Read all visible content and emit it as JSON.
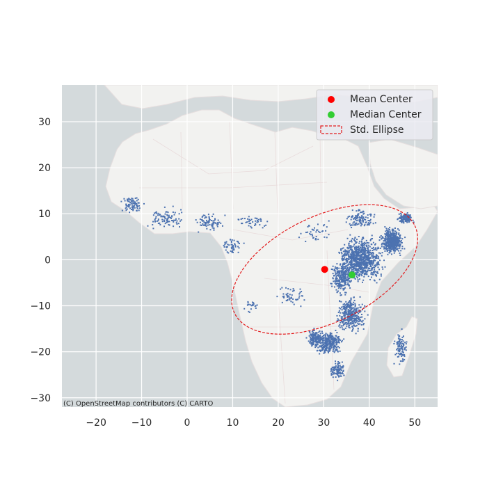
{
  "chart_data": {
    "type": "scatter",
    "title": "",
    "xlabel": "",
    "ylabel": "",
    "xlim": [
      -27.5,
      55
    ],
    "ylim": [
      -32,
      38
    ],
    "xticks": [
      -20,
      -10,
      0,
      10,
      20,
      30,
      40,
      50
    ],
    "yticks": [
      -30,
      -20,
      -10,
      0,
      10,
      20,
      30
    ],
    "grid": true,
    "legend_position": "top-right",
    "basemap_attribution": "(C) OpenStreetMap contributors (C) CARTO",
    "colors": {
      "points": "#4c72b0",
      "mean_center": "#ff0000",
      "median_center": "#32cd32",
      "ellipse": "#e31a1c",
      "ocean": "#d4dadc",
      "land": "#f2f2f0",
      "grid": "#ffffff"
    },
    "mean_center": {
      "label": "Mean Center",
      "x": 30.2,
      "y": -2.1
    },
    "median_center": {
      "label": "Median Center",
      "x": 36.2,
      "y": -3.3
    },
    "std_ellipse": {
      "label": "Std. Ellipse",
      "cx": 30.2,
      "cy": -2.1,
      "semi_major": 22.0,
      "semi_minor": 11.5,
      "rotation_deg": 26
    },
    "point_clusters": [
      {
        "x": 38,
        "y": 0,
        "w": 12,
        "h": 12,
        "n": 900
      },
      {
        "x": 45,
        "y": 4,
        "w": 6,
        "h": 7,
        "n": 500
      },
      {
        "x": 48,
        "y": 9,
        "w": 4,
        "h": 3,
        "n": 150
      },
      {
        "x": 34,
        "y": -4,
        "w": 6,
        "h": 8,
        "n": 250
      },
      {
        "x": 36,
        "y": -12,
        "w": 8,
        "h": 10,
        "n": 350
      },
      {
        "x": 31,
        "y": -18,
        "w": 8,
        "h": 6,
        "n": 300
      },
      {
        "x": 28,
        "y": -17,
        "w": 4,
        "h": 5,
        "n": 150
      },
      {
        "x": 33,
        "y": -24,
        "w": 4,
        "h": 5,
        "n": 100
      },
      {
        "x": 47,
        "y": -19,
        "w": 4,
        "h": 10,
        "n": 100
      },
      {
        "x": 38,
        "y": 9,
        "w": 8,
        "h": 5,
        "n": 120
      },
      {
        "x": -12,
        "y": 12,
        "w": 6,
        "h": 5,
        "n": 80
      },
      {
        "x": -5,
        "y": 9,
        "w": 10,
        "h": 6,
        "n": 90
      },
      {
        "x": 5,
        "y": 8,
        "w": 8,
        "h": 5,
        "n": 80
      },
      {
        "x": 10,
        "y": 3,
        "w": 6,
        "h": 4,
        "n": 50
      },
      {
        "x": 15,
        "y": 8,
        "w": 10,
        "h": 5,
        "n": 40
      },
      {
        "x": 23,
        "y": -8,
        "w": 8,
        "h": 6,
        "n": 50
      },
      {
        "x": 14,
        "y": -10,
        "w": 4,
        "h": 4,
        "n": 20
      },
      {
        "x": 28,
        "y": 6,
        "w": 10,
        "h": 6,
        "n": 40
      }
    ]
  }
}
